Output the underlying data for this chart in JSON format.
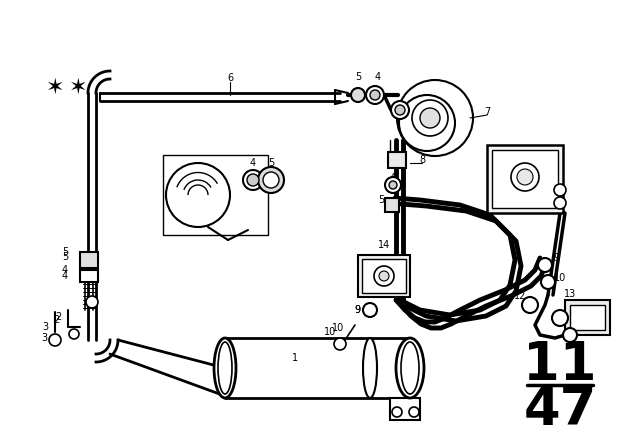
{
  "background_color": "#ffffff",
  "line_color": "#000000",
  "page_number_top": "11",
  "page_number_bottom": "47",
  "figsize": [
    6.4,
    4.48
  ],
  "dpi": 100
}
